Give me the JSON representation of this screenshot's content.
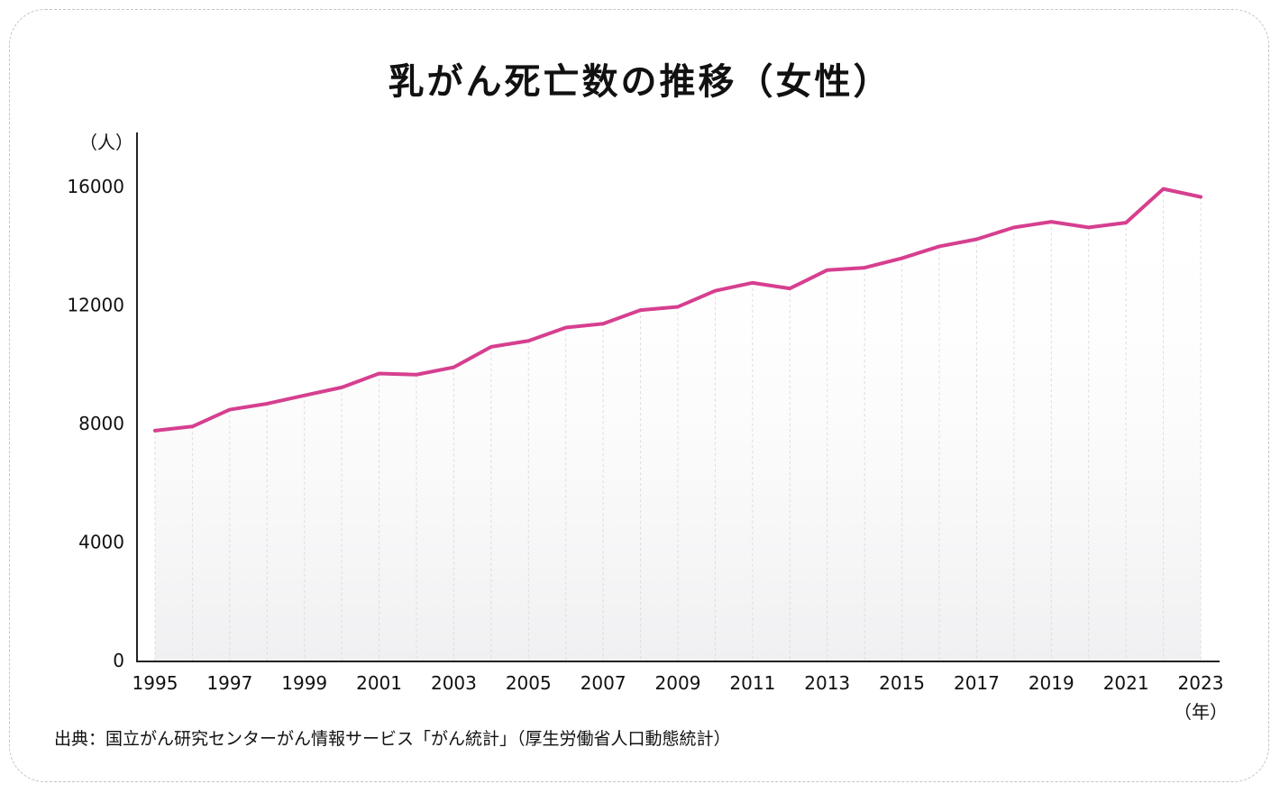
{
  "title": "乳がん死亡数の推移（女性）",
  "source": "出典：国立がん研究センターがん情報サービス「がん統計」（厚生労働省人口動態統計）",
  "colors": {
    "line": "#d63f8f",
    "axis": "#222222",
    "card_border": "#c4c4c4"
  },
  "chart_data": {
    "type": "line",
    "title": "乳がん死亡数の推移（女性）",
    "y_unit": "（人）",
    "x_unit": "（年）",
    "ylim": [
      0,
      18000
    ],
    "y_ticks": [
      0,
      4000,
      8000,
      12000,
      16000
    ],
    "x_ticks": [
      1995,
      1997,
      1999,
      2001,
      2003,
      2005,
      2007,
      2009,
      2011,
      2013,
      2015,
      2017,
      2019,
      2021,
      2023
    ],
    "grid": "vertical dotted at each year",
    "series": [
      {
        "x": [
          1995,
          1996,
          1997,
          1998,
          1999,
          2000,
          2001,
          2002,
          2003,
          2004,
          2005,
          2006,
          2007,
          2008,
          2009,
          2010,
          2011,
          2012,
          2013,
          2014,
          2015,
          2016,
          2017,
          2018,
          2019,
          2020,
          2021,
          2022,
          2023
        ],
        "values": [
          7760,
          7900,
          8470,
          8670,
          8950,
          9220,
          9690,
          9650,
          9900,
          10590,
          10790,
          11240,
          11370,
          11830,
          11940,
          12480,
          12750,
          12560,
          13180,
          13260,
          13580,
          13980,
          14220,
          14620,
          14810,
          14620,
          14780,
          15920,
          15650
        ]
      }
    ]
  }
}
